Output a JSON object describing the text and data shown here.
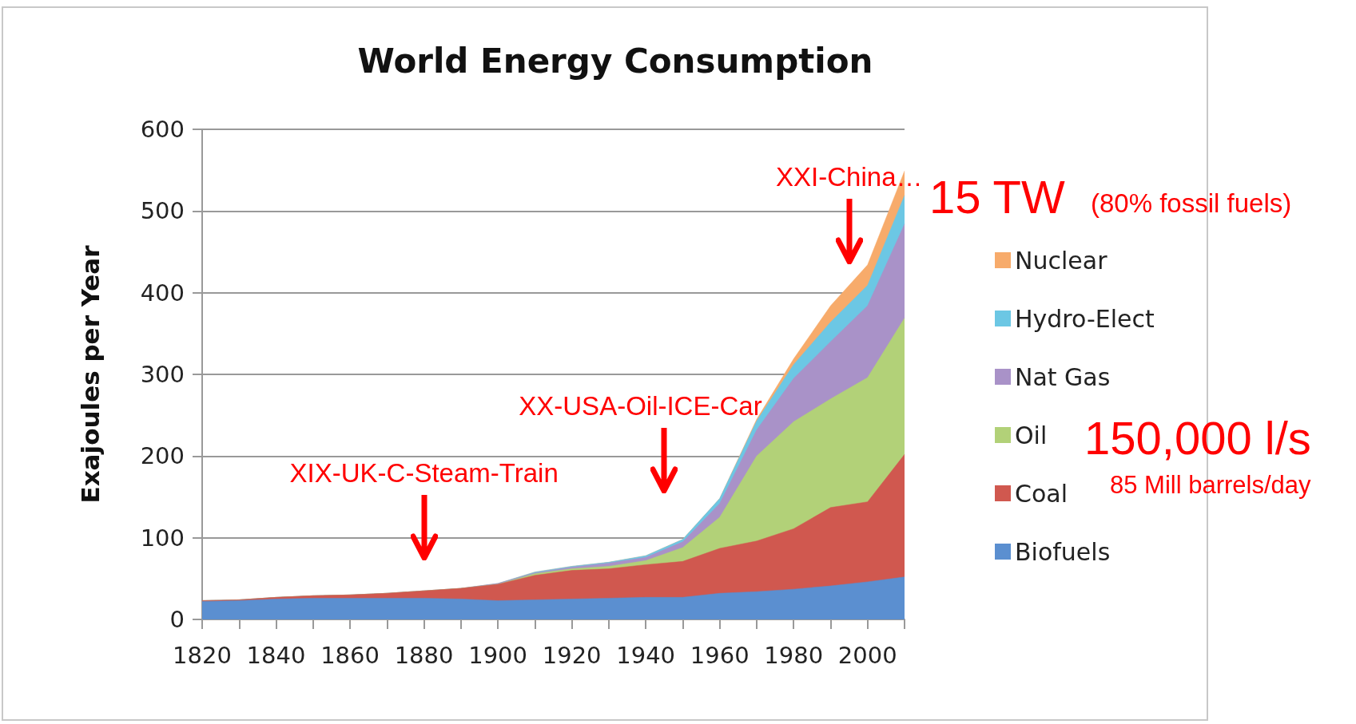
{
  "chart_data": {
    "type": "area",
    "stacked": true,
    "title": "World Energy Consumption",
    "ylabel": "Exajoules per Year",
    "x": [
      1820,
      1830,
      1840,
      1850,
      1860,
      1870,
      1880,
      1890,
      1900,
      1910,
      1920,
      1930,
      1940,
      1950,
      1960,
      1970,
      1980,
      1990,
      2000,
      2010
    ],
    "series": [
      {
        "name": "Biofuels",
        "color": "#5b8fd0",
        "values": [
          22,
          23,
          25,
          26,
          26,
          26,
          26,
          25,
          23,
          24,
          25,
          26,
          27,
          27,
          32,
          34,
          37,
          41,
          46,
          52
        ]
      },
      {
        "name": "Coal",
        "color": "#d0584f",
        "values": [
          1,
          1,
          2,
          3,
          4,
          6,
          9,
          13,
          20,
          30,
          35,
          36,
          40,
          44,
          55,
          62,
          74,
          96,
          98,
          150
        ]
      },
      {
        "name": "Oil",
        "color": "#b2d178",
        "values": [
          0,
          0,
          0,
          0,
          0,
          0,
          0,
          0,
          0,
          2,
          2,
          3,
          5,
          17,
          38,
          104,
          131,
          133,
          152,
          167
        ]
      },
      {
        "name": "Nat Gas",
        "color": "#a992c8",
        "values": [
          0,
          0,
          0,
          0,
          0,
          0,
          0,
          0,
          1,
          1,
          2,
          4,
          4,
          7,
          17,
          32,
          53,
          70,
          88,
          115
        ]
      },
      {
        "name": "Hydro-Elect",
        "color": "#6cc7e4",
        "values": [
          0,
          0,
          0,
          0,
          0,
          0,
          0,
          0,
          0,
          1,
          1,
          1,
          2,
          3,
          6,
          11,
          17,
          24,
          25,
          35
        ]
      },
      {
        "name": "Nuclear",
        "color": "#f7ab6b",
        "values": [
          0,
          0,
          0,
          0,
          0,
          0,
          0,
          0,
          0,
          0,
          0,
          0,
          0,
          0,
          0,
          2,
          7,
          20,
          25,
          30
        ]
      }
    ],
    "xlim": [
      1820,
      2010
    ],
    "xticks": [
      1820,
      {
        "value": 1830,
        "label": null
      },
      1840,
      {
        "value": 1850,
        "label": null
      },
      1860,
      {
        "value": 1870,
        "label": null
      },
      1880,
      {
        "value": 1890,
        "label": null
      },
      1900,
      {
        "value": 1910,
        "label": null
      },
      1920,
      {
        "value": 1930,
        "label": null
      },
      1940,
      {
        "value": 1950,
        "label": null
      },
      1960,
      {
        "value": 1970,
        "label": null
      },
      1980,
      {
        "value": 1990,
        "label": null
      },
      2000,
      {
        "value": 2010,
        "label": null
      }
    ],
    "ylim": [
      0,
      600
    ],
    "yticks": [
      0,
      100,
      200,
      300,
      400,
      500,
      600
    ],
    "grid": "y",
    "legend": "right",
    "annotations": [
      "XIX-UK-C-Steam-Train",
      "XX-USA-Oil-ICE-Car",
      "XXI-China…",
      "15 TW",
      "(80% fossil fuels)",
      "150,000 l/s",
      "85 Mill barrels/day"
    ]
  }
}
